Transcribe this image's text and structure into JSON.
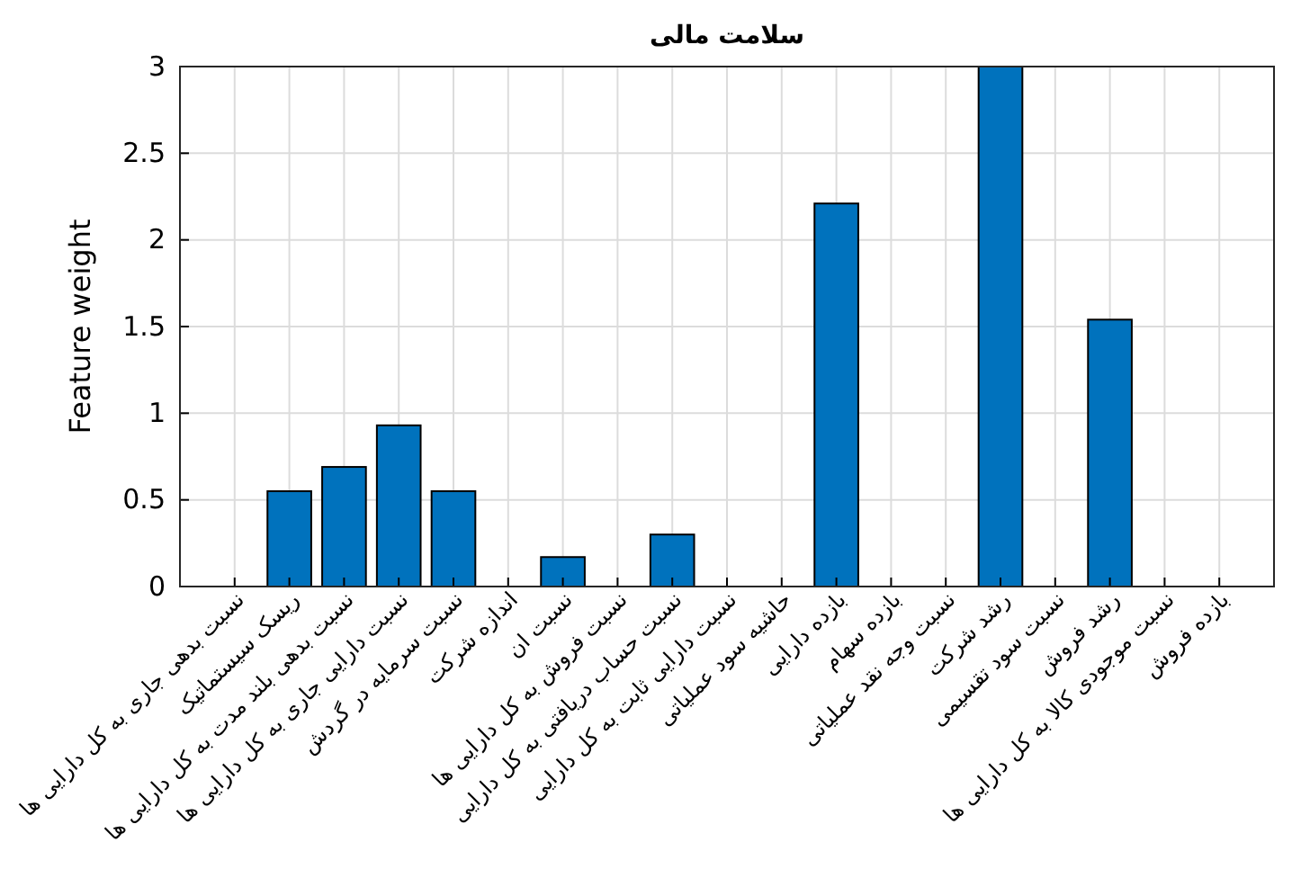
{
  "chart_data": {
    "type": "bar",
    "title": "سلامت مالی",
    "ylabel": "Feature weight",
    "categories": [
      "نسبت بدهی جاری به کل دارایی ها",
      "ریسک سیستماتیک",
      "نسبت بدهی بلند مدت به کل دارایی ها",
      "نسبت دارایی جاری به کل دارایی ها",
      "نسبت سرمایه در گردش",
      "اندازه شرکت",
      "نسبت ان",
      "نسبت فروش به کل دارایی ها",
      "نسبت حساب دریافتی به کل دارایی",
      "نسبت دارایی ثابت به کل دارایی",
      "حاشیه سود عملیاتی",
      "بازده دارایی",
      "بازده سهام",
      "نسبت وجه نقد عملیاتی",
      "رشد شرکت",
      "نسبت سود تقسیمی",
      "رشد فروش",
      "نسبت موجودی کالا به کل دارایی ها",
      "بازده فروش"
    ],
    "values": [
      0,
      0.55,
      0.69,
      0.93,
      0.55,
      0,
      0.17,
      0,
      0.3,
      0,
      0,
      2.21,
      0,
      0,
      3,
      0,
      1.54,
      0,
      0
    ],
    "color": "#0072bd",
    "ylim": [
      0,
      3
    ],
    "yticks": [
      0,
      0.5,
      1,
      1.5,
      2,
      2.5,
      3
    ],
    "grid": true
  }
}
